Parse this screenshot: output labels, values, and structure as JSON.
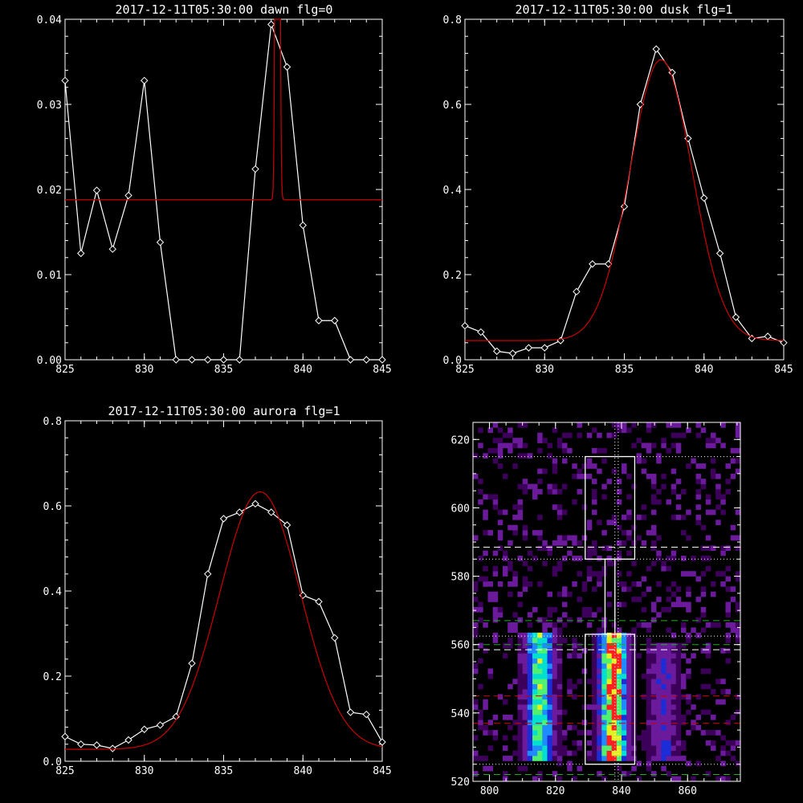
{
  "chart_data": [
    {
      "type": "line",
      "title": "2017-12-11T05:30:00 dawn flg=0",
      "xlim": [
        825,
        845
      ],
      "ylim": [
        0.0,
        0.04
      ],
      "x_ticks": [
        "825",
        "830",
        "835",
        "840",
        "845"
      ],
      "y_ticks": [
        "0.00",
        "0.01",
        "0.02",
        "0.03",
        "0.04"
      ],
      "grid": false,
      "series": [
        {
          "kind": "data",
          "color": "#ffffff",
          "marker": "diamond",
          "x": [
            825,
            826,
            827,
            828,
            829,
            830,
            831,
            832,
            833,
            834,
            835,
            836,
            837,
            838,
            839,
            840,
            841,
            842,
            843,
            844,
            845
          ],
          "y": [
            0.0328,
            0.0125,
            0.0199,
            0.013,
            0.0193,
            0.0328,
            0.0138,
            0.0,
            0.0,
            0.0,
            0.0,
            0.0,
            0.0224,
            0.0394,
            0.0344,
            0.0158,
            0.0046,
            0.0046,
            0.0,
            0.0,
            0.0
          ]
        },
        {
          "kind": "fit",
          "color": "#cc0000",
          "baseline": 0.0188,
          "peak": {
            "center": 838.4,
            "sigma": 0.09,
            "amplitude": 0.2
          }
        }
      ]
    },
    {
      "type": "line",
      "title": "2017-12-11T05:30:00 dusk flg=1",
      "xlim": [
        825,
        845
      ],
      "ylim": [
        0.0,
        0.8
      ],
      "x_ticks": [
        "825",
        "830",
        "835",
        "840",
        "845"
      ],
      "y_ticks": [
        "0.0",
        "0.2",
        "0.4",
        "0.6",
        "0.8"
      ],
      "grid": false,
      "series": [
        {
          "kind": "data",
          "color": "#ffffff",
          "marker": "diamond",
          "x": [
            825,
            826,
            827,
            828,
            829,
            830,
            831,
            832,
            833,
            834,
            835,
            836,
            837,
            838,
            839,
            840,
            841,
            842,
            843,
            844,
            845
          ],
          "y": [
            0.08,
            0.065,
            0.02,
            0.015,
            0.028,
            0.028,
            0.045,
            0.16,
            0.225,
            0.225,
            0.36,
            0.6,
            0.73,
            0.675,
            0.52,
            0.38,
            0.25,
            0.1,
            0.05,
            0.055,
            0.04
          ]
        },
        {
          "kind": "fit",
          "color": "#cc0000",
          "baseline": 0.045,
          "peak": {
            "center": 837.3,
            "sigma": 1.95,
            "amplitude": 0.66
          }
        }
      ]
    },
    {
      "type": "line",
      "title": "2017-12-11T05:30:00 aurora flg=1",
      "xlim": [
        825,
        845
      ],
      "ylim": [
        0.0,
        0.8
      ],
      "x_ticks": [
        "825",
        "830",
        "835",
        "840",
        "845"
      ],
      "y_ticks": [
        "0.0",
        "0.2",
        "0.4",
        "0.6",
        "0.8"
      ],
      "grid": false,
      "series": [
        {
          "kind": "data",
          "color": "#ffffff",
          "marker": "diamond",
          "x": [
            825,
            826,
            827,
            828,
            829,
            830,
            831,
            832,
            833,
            834,
            835,
            836,
            837,
            838,
            839,
            840,
            841,
            842,
            843,
            844,
            845
          ],
          "y": [
            0.058,
            0.04,
            0.038,
            0.03,
            0.05,
            0.075,
            0.085,
            0.105,
            0.23,
            0.44,
            0.57,
            0.585,
            0.605,
            0.585,
            0.555,
            0.39,
            0.375,
            0.29,
            0.115,
            0.11,
            0.045
          ]
        },
        {
          "kind": "fit",
          "color": "#cc0000",
          "baseline": 0.028,
          "peak": {
            "center": 837.3,
            "sigma": 2.55,
            "amplitude": 0.605
          }
        }
      ]
    },
    {
      "type": "heatmap",
      "title": "",
      "xlim": [
        795,
        876
      ],
      "ylim": [
        520,
        625
      ],
      "x_ticks": [
        "800",
        "820",
        "840",
        "860"
      ],
      "y_ticks": [
        "520",
        "540",
        "560",
        "580",
        "600",
        "620"
      ],
      "colormap": [
        "#3d005a",
        "#6a1a9a",
        "#1c2cd6",
        "#1e8cff",
        "#00e0d0",
        "#50f070",
        "#e0f020",
        "#ff2020"
      ],
      "bands": [
        {
          "x": 814.5,
          "y_range": [
            525,
            562
          ],
          "intensity": 0.65
        },
        {
          "x": 836.8,
          "y_range": [
            525,
            563
          ],
          "intensity": 0.95
        },
        {
          "x": 852,
          "y_range": [
            526,
            560
          ],
          "intensity": 0.25
        }
      ],
      "boxes": [
        {
          "x_range": [
            829,
            844
          ],
          "y_range": [
            585,
            615
          ],
          "color": "#ffffff",
          "style": "solid"
        },
        {
          "x_range": [
            829,
            844
          ],
          "y_range": [
            525,
            563
          ],
          "color": "#ffffff",
          "style": "solid"
        },
        {
          "x_range": [
            835,
            838
          ],
          "y_range": [
            563,
            585
          ],
          "color": "#ffffff",
          "style": "solid"
        }
      ],
      "hlines": [
        {
          "y": 615,
          "color": "#ffffff",
          "style": "dotted"
        },
        {
          "y": 588.5,
          "color": "#ffffff",
          "style": "dashed"
        },
        {
          "y": 585,
          "color": "#ffffff",
          "style": "dotted"
        },
        {
          "y": 567,
          "color": "#22aa22",
          "style": "dashed"
        },
        {
          "y": 562.5,
          "color": "#ffffff",
          "style": "dotted"
        },
        {
          "y": 560,
          "color": "#22aa22",
          "style": "dashed"
        },
        {
          "y": 558.5,
          "color": "#ffffff",
          "style": "dashed"
        },
        {
          "y": 545,
          "color": "#cc0000",
          "style": "dashed"
        },
        {
          "y": 537,
          "color": "#cc0000",
          "style": "dashed"
        },
        {
          "y": 525,
          "color": "#ffffff",
          "style": "dotted"
        },
        {
          "y": 522,
          "color": "#22aa22",
          "style": "dashed"
        }
      ],
      "vlines": [
        {
          "x": 838,
          "color": "#ffffff",
          "style": "dotted"
        },
        {
          "x": 839,
          "color": "#ffffff",
          "style": "dotted"
        }
      ]
    }
  ]
}
